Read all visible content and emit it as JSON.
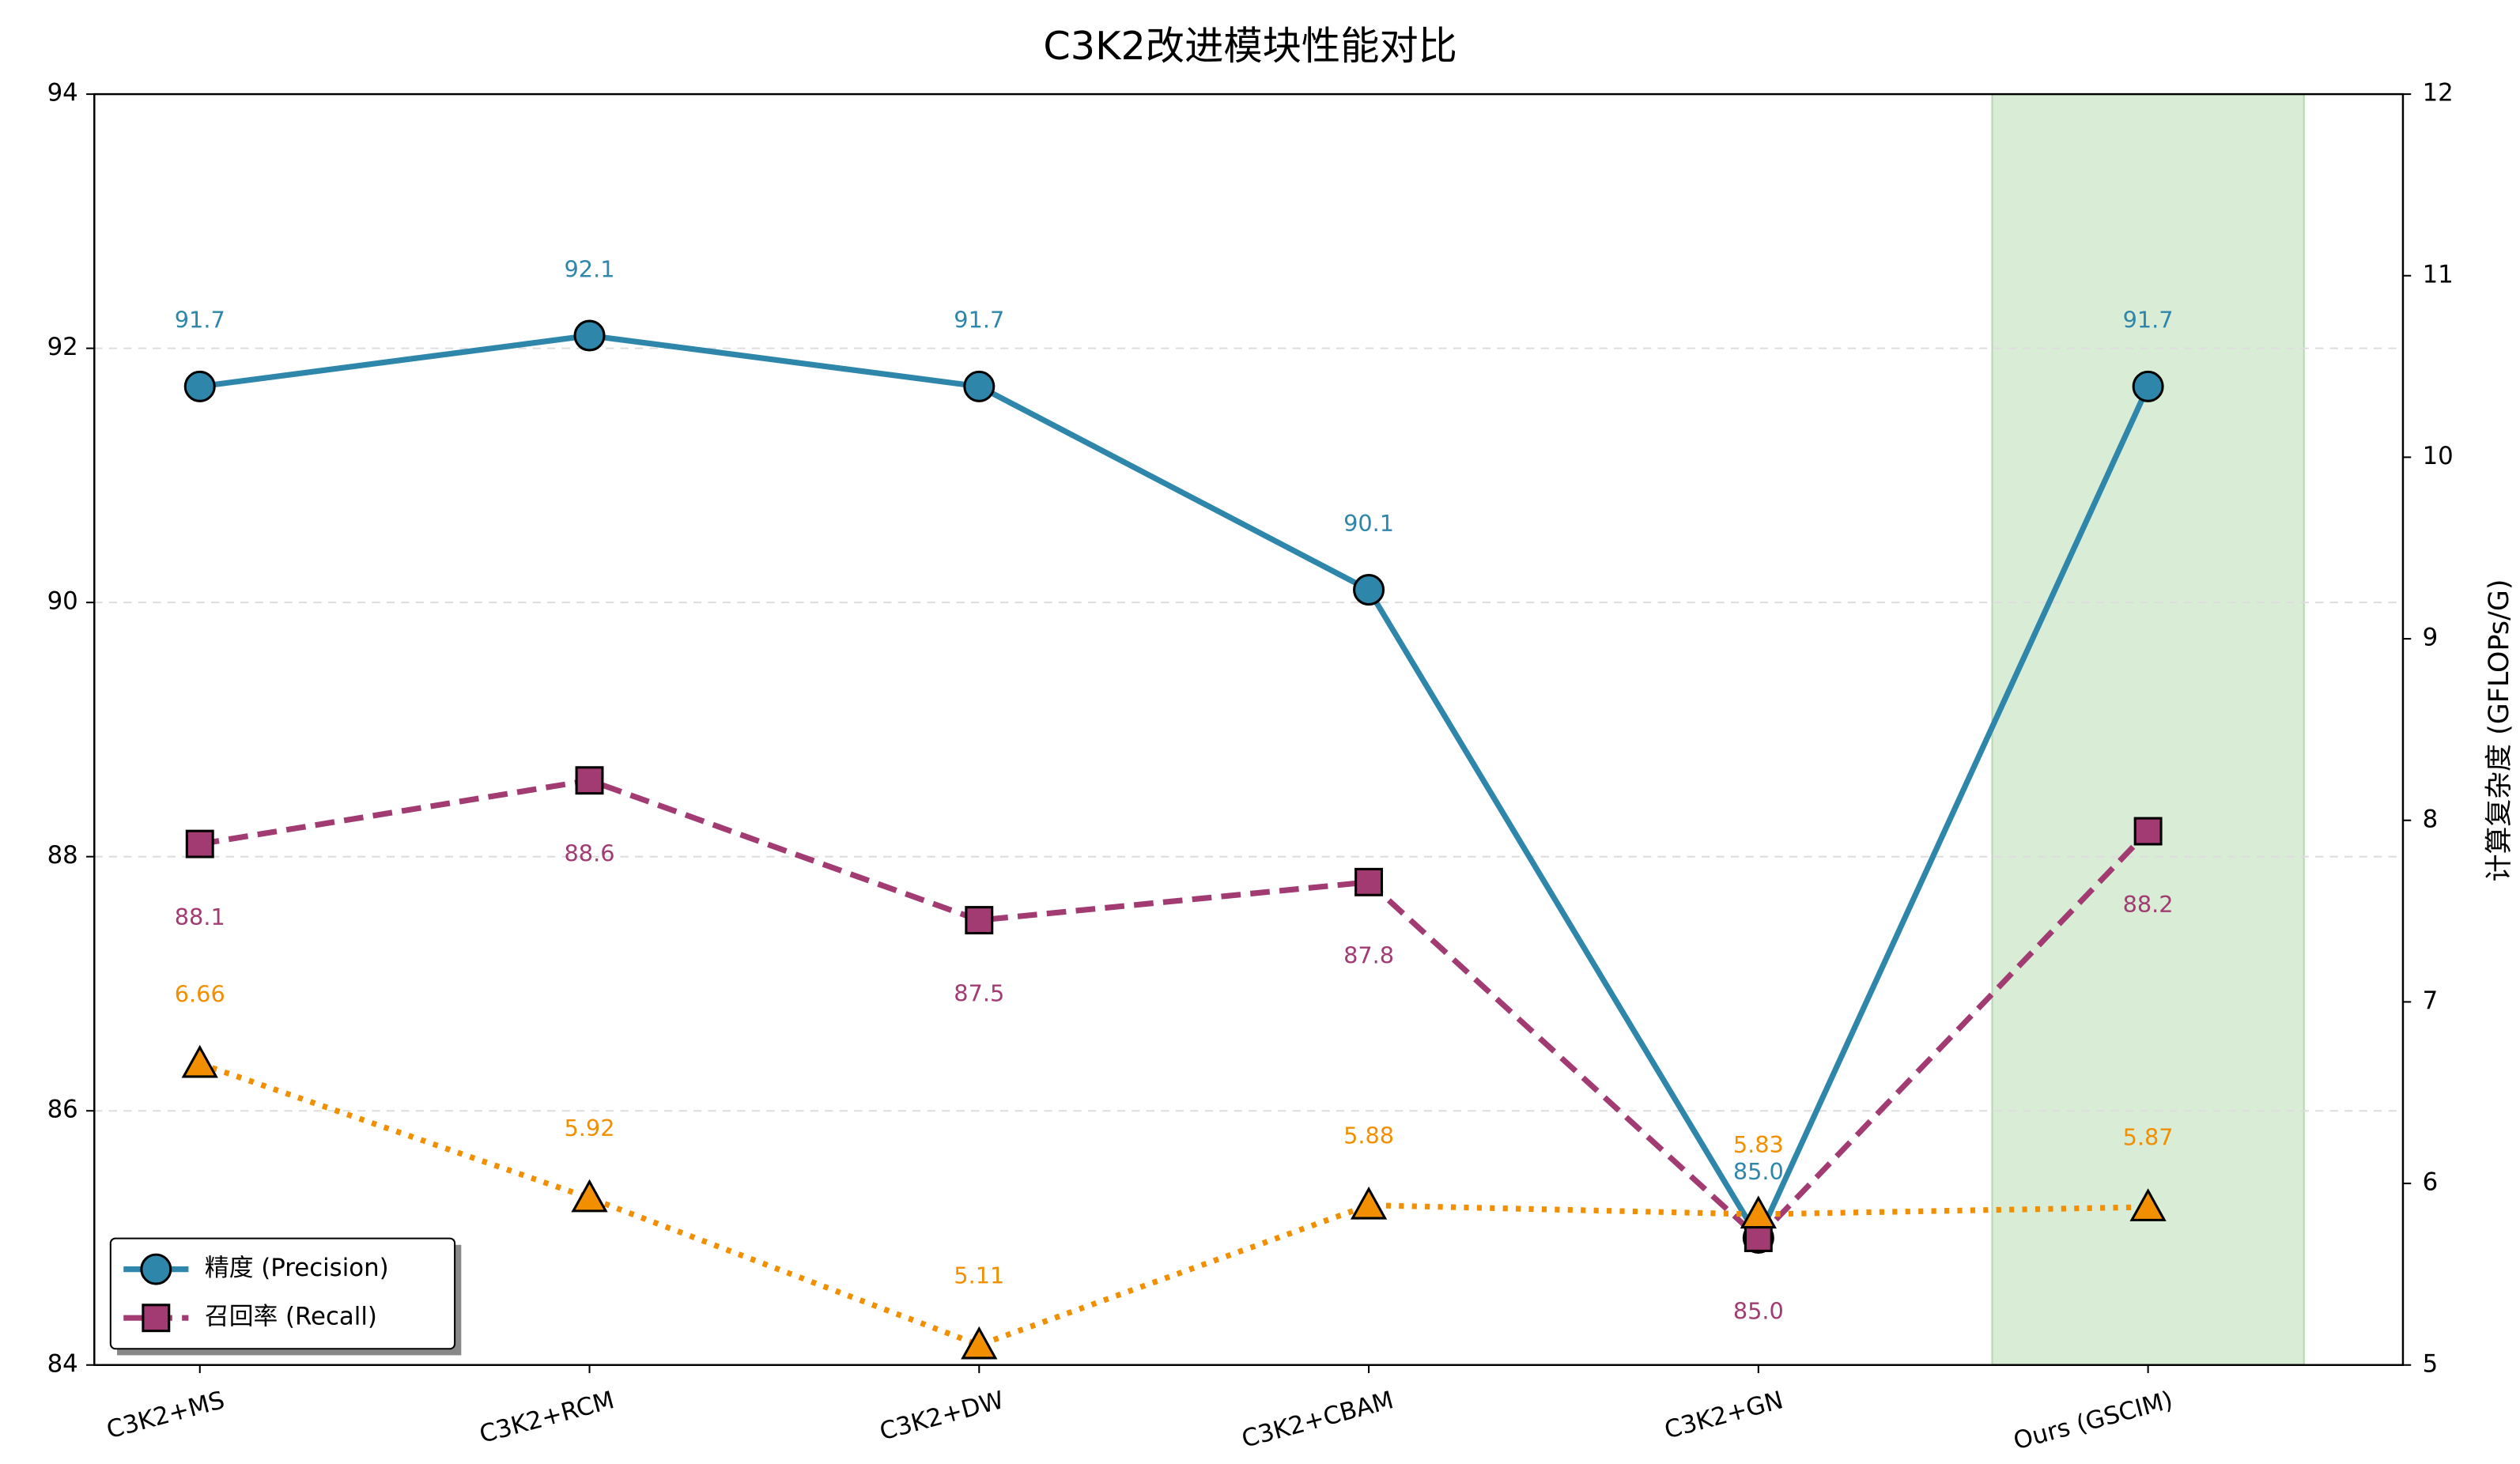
{
  "chart_data": {
    "type": "line",
    "title": "C3K2改进模块性能对比",
    "y2label": "计算复杂度 (GFLOPs/G)",
    "categories": [
      "C3K2+MS",
      "C3K2+RCM",
      "C3K2+DW",
      "C3K2+CBAM",
      "C3K2+GN",
      "Ours (GSCIM)"
    ],
    "series": [
      {
        "name": "精度 (Precision)",
        "color": "#2e86ab",
        "style": "solid",
        "marker": "circle",
        "values": [
          91.7,
          92.1,
          91.7,
          90.1,
          85.0,
          91.7
        ],
        "value_labels": [
          "91.7",
          "92.1",
          "91.7",
          "90.1",
          "85.0",
          "91.7"
        ]
      },
      {
        "name": "召回率 (Recall)",
        "color": "#a23b72",
        "style": "dashed",
        "marker": "square",
        "values": [
          88.1,
          88.6,
          87.5,
          87.8,
          85.0,
          88.2
        ],
        "value_labels": [
          "88.1",
          "88.6",
          "87.5",
          "87.8",
          "85.0",
          "88.2"
        ]
      },
      {
        "color": "#f18f01",
        "style": "dotted",
        "marker": "triangle",
        "axis": "y2",
        "values": [
          6.66,
          5.92,
          5.11,
          5.88,
          5.83,
          5.87
        ],
        "value_labels": [
          "6.66",
          "5.92",
          "5.11",
          "5.88",
          "5.83",
          "5.87"
        ]
      }
    ],
    "ylim": [
      84,
      94
    ],
    "yticks": [
      84,
      86,
      88,
      90,
      92,
      94
    ],
    "y2lim": [
      5,
      12
    ],
    "y2ticks": [
      5,
      6,
      7,
      8,
      9,
      10,
      11,
      12
    ],
    "grid": true,
    "legend": "lower left",
    "highlight_color": "#d8ecd6"
  }
}
